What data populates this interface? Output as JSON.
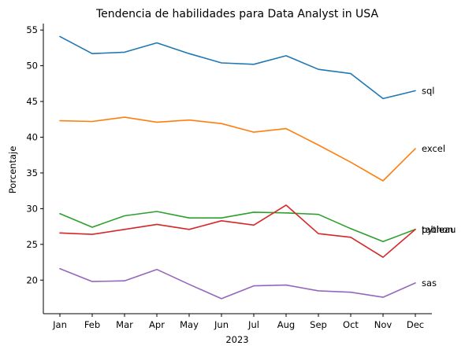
{
  "chart_data": {
    "type": "line",
    "title": "Tendencia de habilidades para Data Analyst in USA",
    "xlabel": "2023",
    "ylabel": "Porcentaje",
    "categories": [
      "Jan",
      "Feb",
      "Mar",
      "Apr",
      "May",
      "Jun",
      "Jul",
      "Aug",
      "Sep",
      "Oct",
      "Nov",
      "Dec"
    ],
    "ylim": [
      15.3,
      55.9
    ],
    "yticks": [
      20,
      25,
      30,
      35,
      40,
      45,
      50,
      55
    ],
    "grid": false,
    "legend": "none (series labeled at line ends)",
    "series": [
      {
        "name": "sql",
        "color": "#1f77b4",
        "values": [
          54.1,
          51.7,
          51.9,
          53.2,
          51.7,
          50.4,
          50.2,
          51.4,
          49.5,
          48.9,
          45.4,
          46.5
        ]
      },
      {
        "name": "excel",
        "color": "#ff7f0e",
        "values": [
          42.3,
          42.2,
          42.8,
          42.1,
          42.4,
          41.9,
          40.7,
          41.2,
          38.9,
          36.5,
          33.9,
          38.4
        ]
      },
      {
        "name": "tableau",
        "color": "#2ca02c",
        "values": [
          29.3,
          27.4,
          29.0,
          29.6,
          28.7,
          28.7,
          29.5,
          29.4,
          29.2,
          27.2,
          25.4,
          27.1
        ]
      },
      {
        "name": "python",
        "color": "#d62728",
        "values": [
          26.6,
          26.4,
          27.1,
          27.8,
          27.1,
          28.3,
          27.7,
          30.5,
          26.5,
          26.0,
          23.2,
          27.1
        ]
      },
      {
        "name": "sas",
        "color": "#9467bd",
        "values": [
          21.6,
          19.8,
          19.9,
          21.5,
          19.4,
          17.4,
          19.2,
          19.3,
          18.5,
          18.3,
          17.6,
          19.6
        ]
      }
    ]
  }
}
